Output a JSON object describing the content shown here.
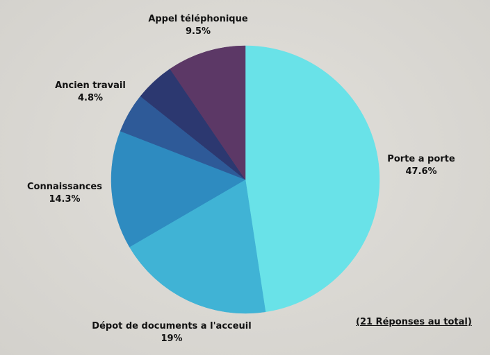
{
  "chart_data": {
    "type": "pie",
    "slices": [
      {
        "label": "Porte a porte",
        "value_label": "47.6%",
        "value": 47.6,
        "color": "#69e2e8"
      },
      {
        "label": "Dépot de documents a l'acceuil",
        "value_label": "19%",
        "value": 19.0,
        "color": "#40b3d5"
      },
      {
        "label": "Connaissances",
        "value_label": "14.3%",
        "value": 14.3,
        "color": "#2e8bc0"
      },
      {
        "label": "",
        "value_label": "",
        "value": 4.8,
        "color": "#2e5a98"
      },
      {
        "label": "Ancien travail",
        "value_label": "4.8%",
        "value": 4.8,
        "color": "#2c3870"
      },
      {
        "label": "Appel téléphonique",
        "value_label": "9.5%",
        "value": 9.5,
        "color": "#5c3866"
      }
    ],
    "start": "top, clockwise"
  },
  "footnote": "(21 Réponses au total)"
}
